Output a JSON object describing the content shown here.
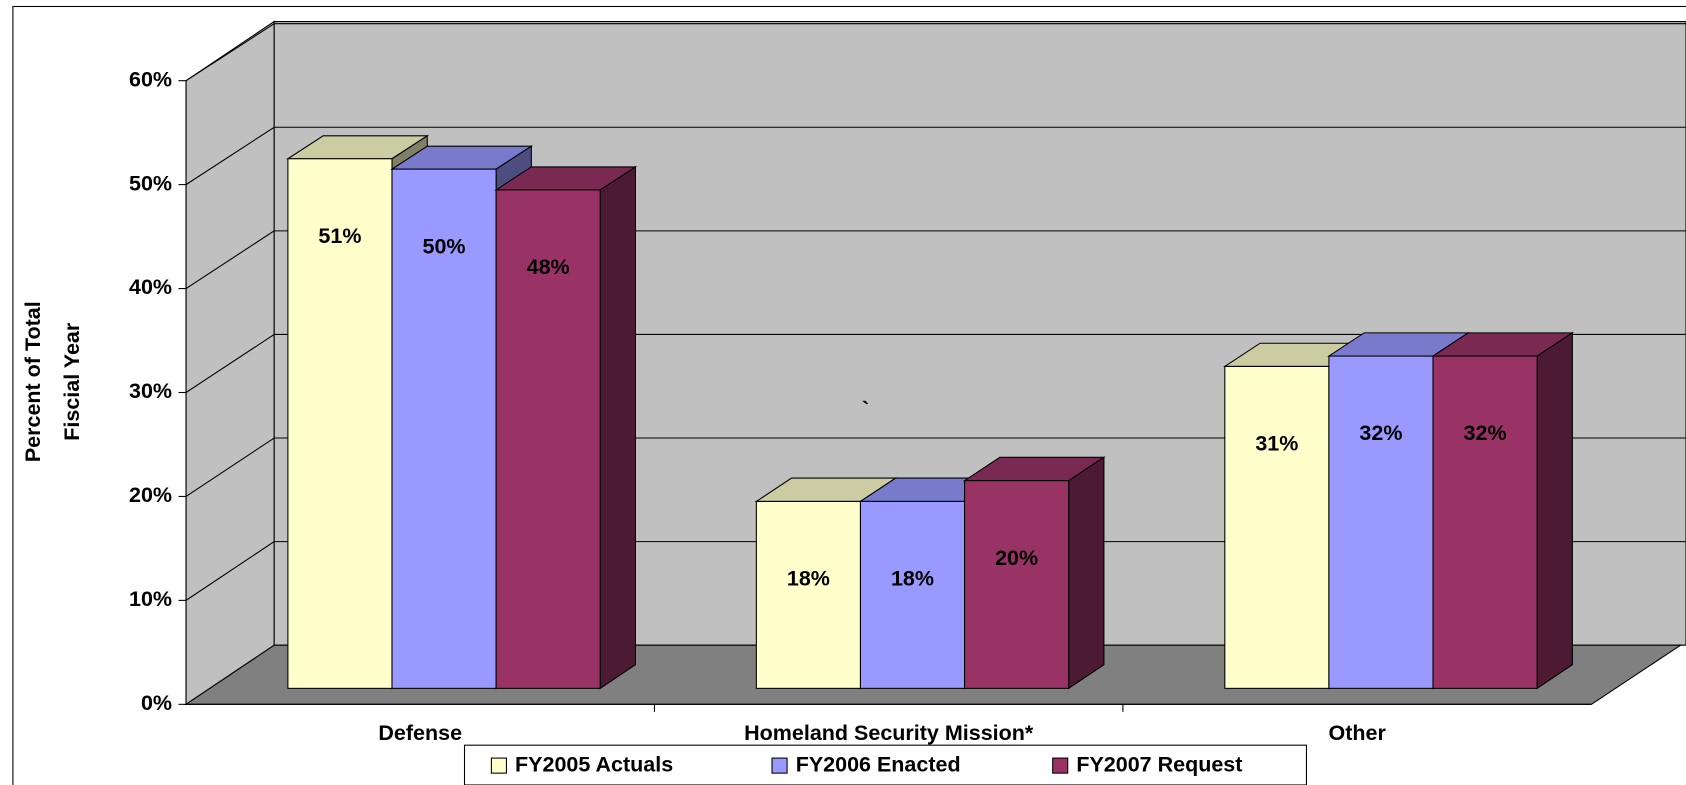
{
  "chart_data": {
    "type": "bar3d",
    "ylabel": [
      "Percent of Total",
      "Fiscial Year"
    ],
    "categories": [
      "Defense",
      "Homeland Security Mission*",
      "Other"
    ],
    "series": [
      {
        "name": "FY2005 Actuals",
        "color": "#ffffcc",
        "values": [
          51,
          18,
          31
        ],
        "value_labels": [
          "51%",
          "18%",
          "31%"
        ]
      },
      {
        "name": "FY2006 Enacted",
        "color": "#9999ff",
        "values": [
          50,
          18,
          32
        ],
        "value_labels": [
          "50%",
          "18%",
          "32%"
        ]
      },
      {
        "name": "FY2007 Request",
        "color": "#993366",
        "values": [
          48,
          20,
          32
        ],
        "value_labels": [
          "48%",
          "20%",
          "32%"
        ]
      }
    ],
    "ylim": [
      0,
      60
    ],
    "yticks": [
      {
        "value": 0,
        "label": "0%"
      },
      {
        "value": 10,
        "label": "10%"
      },
      {
        "value": 20,
        "label": "20%"
      },
      {
        "value": 30,
        "label": "30%"
      },
      {
        "value": 40,
        "label": "40%"
      },
      {
        "value": 50,
        "label": "50%"
      },
      {
        "value": 60,
        "label": "60%"
      }
    ],
    "grid": true,
    "legend": "bottom",
    "annotation": "`"
  }
}
